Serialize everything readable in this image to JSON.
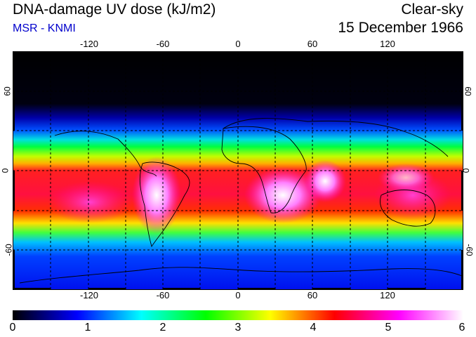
{
  "header": {
    "title": "DNA-damage UV dose (kJ/m2)",
    "subtitle": "MSR - KNMI",
    "mode": "Clear-sky",
    "date": "15 December 1966"
  },
  "map": {
    "longitude_ticks": [
      "-120",
      "-60",
      "0",
      "60",
      "120"
    ],
    "latitude_ticks": [
      "60",
      "0",
      "-60"
    ],
    "longitude_tick_values": [
      -120,
      -60,
      0,
      60,
      120
    ],
    "latitude_tick_values": [
      60,
      0,
      -60
    ],
    "lon_range": [
      -180,
      180
    ],
    "lat_range": [
      -90,
      90
    ]
  },
  "colorbar": {
    "ticks": [
      "0",
      "1",
      "2",
      "3",
      "4",
      "5",
      "6"
    ],
    "min": 0,
    "max": 6,
    "colors": [
      "#000000",
      "#0000ff",
      "#00ffff",
      "#00ff00",
      "#ffff00",
      "#ff0000",
      "#ff00ff",
      "#ffffff"
    ]
  }
}
